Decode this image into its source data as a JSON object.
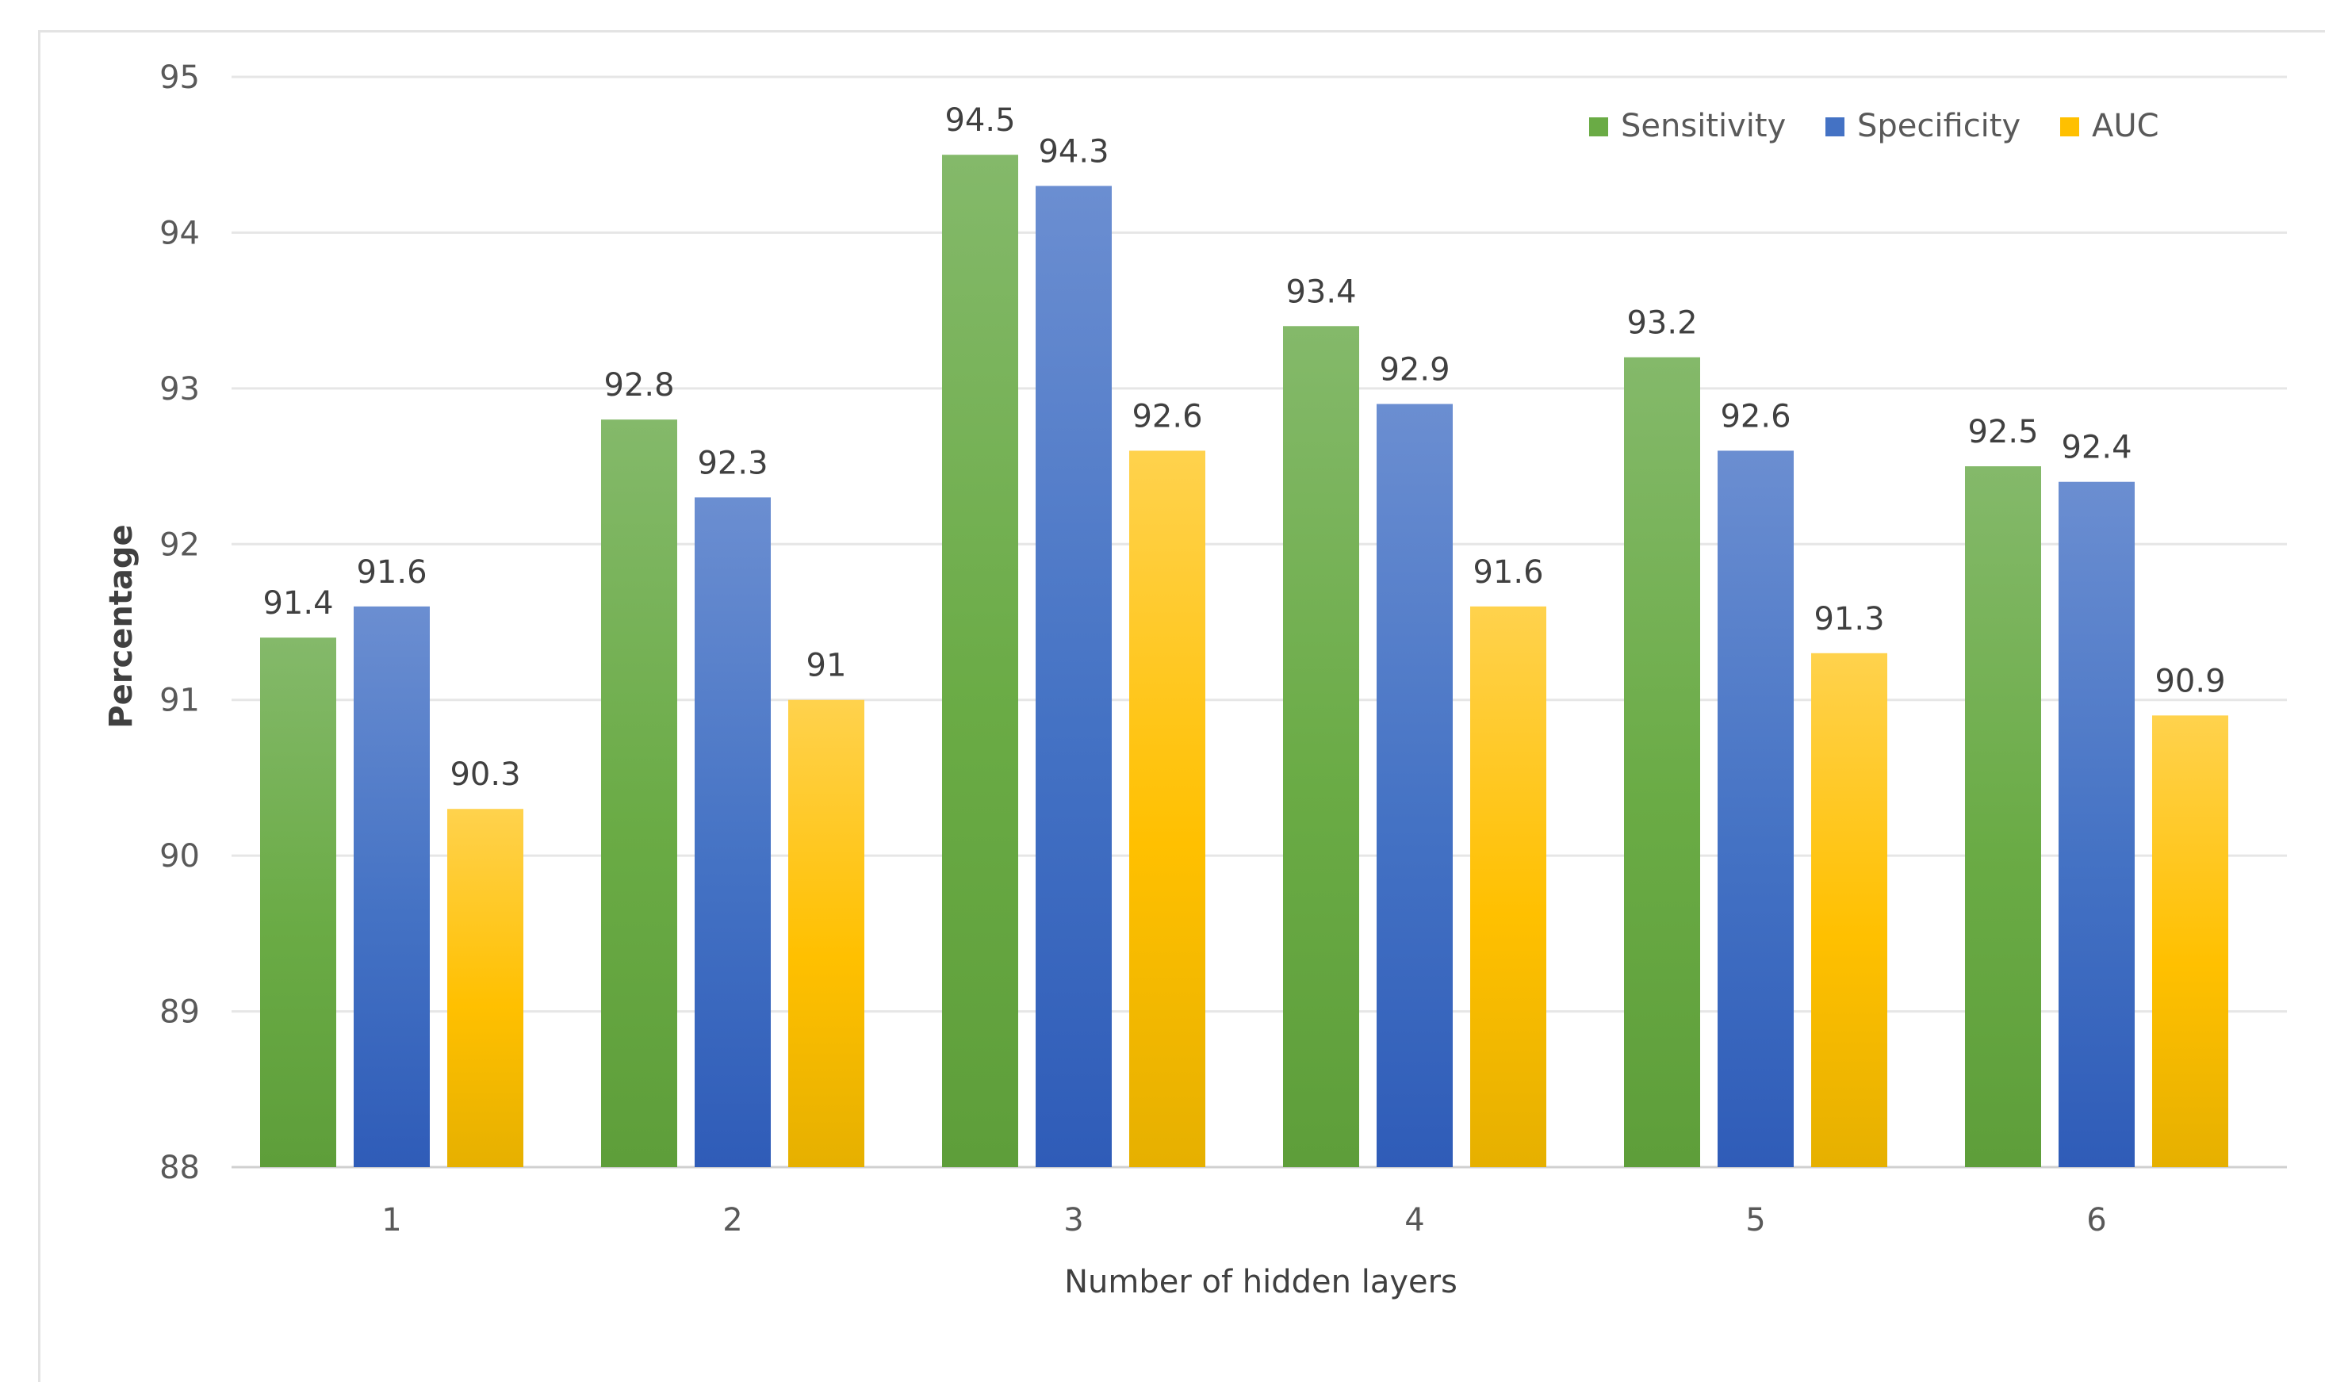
{
  "chart_data": {
    "type": "bar",
    "title": "",
    "xlabel": "Number of hidden layers",
    "ylabel": "Percentage",
    "ylim": [
      88,
      95
    ],
    "yticks": [
      88,
      89,
      90,
      91,
      92,
      93,
      94,
      95
    ],
    "grid": true,
    "legend_position": "top-right",
    "categories": [
      "1",
      "2",
      "3",
      "4",
      "5",
      "6"
    ],
    "series": [
      {
        "name": "Sensitivity",
        "color_top": "#84b96a",
        "color_bottom": "#5e9e3a",
        "color": "#6aab45",
        "values": [
          91.4,
          92.8,
          94.5,
          93.4,
          93.2,
          92.5
        ],
        "labels": [
          "91.4",
          "92.8",
          "94.5",
          "93.4",
          "93.2",
          "92.5"
        ]
      },
      {
        "name": "Specificity",
        "color_top": "#6b8ed1",
        "color_bottom": "#2f5cb8",
        "color": "#4472c4",
        "values": [
          91.6,
          92.3,
          94.3,
          92.9,
          92.6,
          92.4
        ],
        "labels": [
          "91.6",
          "92.3",
          "94.3",
          "92.9",
          "92.6",
          "92.4"
        ]
      },
      {
        "name": "AUC",
        "color_top": "#ffd24d",
        "color_bottom": "#e6b000",
        "color": "#ffc000",
        "values": [
          90.3,
          91.0,
          92.6,
          91.6,
          91.3,
          90.9
        ],
        "labels": [
          "90.3",
          "91",
          "92.6",
          "91.6",
          "91.3",
          "90.9"
        ]
      }
    ]
  }
}
